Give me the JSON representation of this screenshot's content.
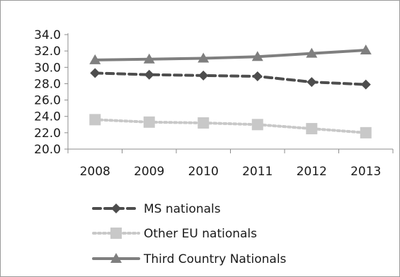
{
  "chart_data": {
    "type": "line",
    "title": "",
    "xlabel": "",
    "ylabel": "",
    "categories": [
      "2008",
      "2009",
      "2010",
      "2011",
      "2012",
      "2013"
    ],
    "ylim": [
      20.0,
      34.0
    ],
    "yticks": [
      "20.0",
      "22.0",
      "24.0",
      "26.0",
      "28.0",
      "30.0",
      "32.0",
      "34.0"
    ],
    "grid": false,
    "legend_position": "bottom",
    "series": [
      {
        "name": "MS nationals",
        "values": [
          29.3,
          29.1,
          29.0,
          28.9,
          28.2,
          27.9
        ],
        "color": "#4d4d4d",
        "marker": "diamond",
        "line": "dashed"
      },
      {
        "name": "Other EU nationals",
        "values": [
          23.6,
          23.3,
          23.2,
          23.0,
          22.5,
          22.0
        ],
        "color": "#c8c8c8",
        "marker": "square",
        "line": "dotted"
      },
      {
        "name": "Third Country Nationals",
        "values": [
          30.9,
          31.0,
          31.1,
          31.3,
          31.7,
          32.1
        ],
        "color": "#7f7f7f",
        "marker": "triangle",
        "line": "solid"
      }
    ]
  }
}
